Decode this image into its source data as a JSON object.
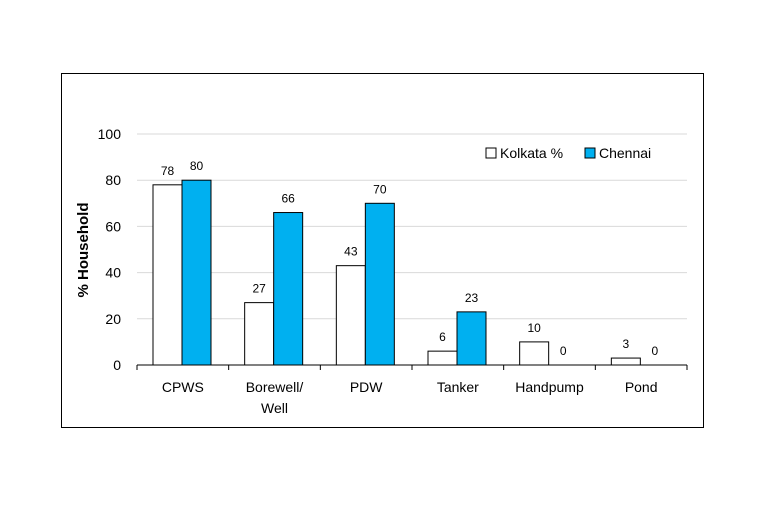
{
  "chart_data": {
    "type": "bar",
    "categories": [
      [
        "CPWS"
      ],
      [
        "Borewell/",
        "Well"
      ],
      [
        "PDW"
      ],
      [
        "Tanker"
      ],
      [
        "Handpump"
      ],
      [
        "Pond"
      ]
    ],
    "series": [
      {
        "name": "Kolkata %",
        "values": [
          78,
          27,
          43,
          6,
          10,
          3
        ],
        "color": "#ffffff",
        "stroke": "#000000"
      },
      {
        "name": "Chennai",
        "values": [
          80,
          66,
          70,
          23,
          0,
          0
        ],
        "color": "#00b0f0",
        "stroke": "#000000"
      }
    ],
    "ylabel": "% Household",
    "xlabel": "",
    "ylim": [
      0,
      100
    ],
    "yticks": [
      0,
      20,
      40,
      60,
      80,
      100
    ],
    "grid": true,
    "legend_position": "top-right",
    "data_labels": true
  }
}
